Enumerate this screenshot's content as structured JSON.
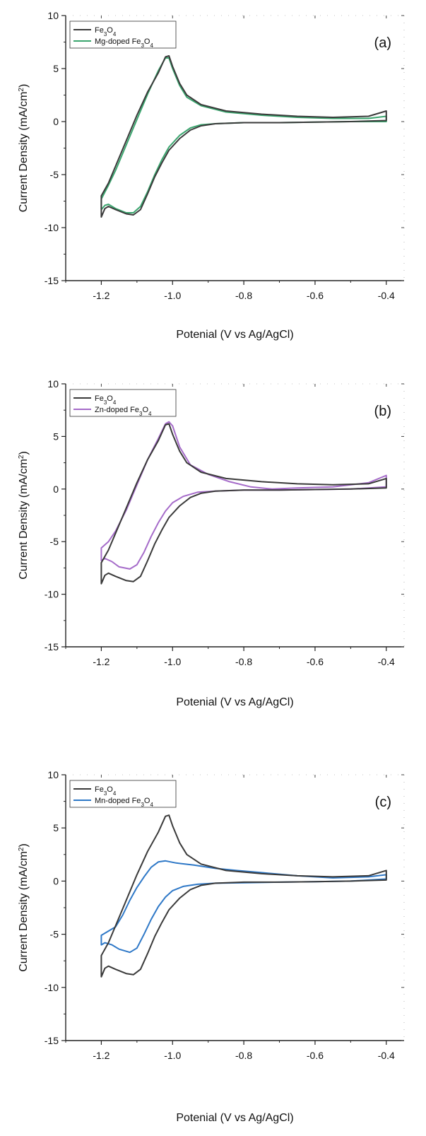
{
  "chart_data": [
    {
      "type": "line",
      "panel_label": "(a)",
      "xlabel": "Potenial (V vs Ag/AgCl)",
      "ylabel": "Current Density (mA/cm²)",
      "xlim": [
        -1.3,
        -0.35
      ],
      "ylim": [
        -15,
        10
      ],
      "xticks": [
        "-1.2",
        "-1.0",
        "-0.8",
        "-0.6",
        "-0.4"
      ],
      "yticks": [
        "10",
        "5",
        "0",
        "-5",
        "-10",
        "-15"
      ],
      "legend_position": "top-left",
      "series": [
        {
          "name": "Fe3O4",
          "color": "#3a3a3a",
          "points": [
            [
              -1.2,
              -9.0
            ],
            [
              -1.19,
              -8.2
            ],
            [
              -1.18,
              -8.0
            ],
            [
              -1.16,
              -8.3
            ],
            [
              -1.13,
              -8.7
            ],
            [
              -1.11,
              -8.8
            ],
            [
              -1.09,
              -8.3
            ],
            [
              -1.07,
              -6.8
            ],
            [
              -1.05,
              -5.2
            ],
            [
              -1.03,
              -3.9
            ],
            [
              -1.01,
              -2.7
            ],
            [
              -0.98,
              -1.6
            ],
            [
              -0.95,
              -0.8
            ],
            [
              -0.92,
              -0.4
            ],
            [
              -0.88,
              -0.2
            ],
            [
              -0.8,
              -0.1
            ],
            [
              -0.7,
              -0.1
            ],
            [
              -0.6,
              -0.05
            ],
            [
              -0.5,
              0.0
            ],
            [
              -0.4,
              0.1
            ],
            [
              -0.4,
              1.0
            ],
            [
              -0.45,
              0.5
            ],
            [
              -0.55,
              0.4
            ],
            [
              -0.65,
              0.5
            ],
            [
              -0.75,
              0.7
            ],
            [
              -0.85,
              1.0
            ],
            [
              -0.92,
              1.6
            ],
            [
              -0.96,
              2.5
            ],
            [
              -0.98,
              3.6
            ],
            [
              -1.0,
              5.2
            ],
            [
              -1.01,
              6.2
            ],
            [
              -1.02,
              6.1
            ],
            [
              -1.04,
              4.6
            ],
            [
              -1.07,
              2.8
            ],
            [
              -1.1,
              0.6
            ],
            [
              -1.13,
              -1.8
            ],
            [
              -1.16,
              -4.2
            ],
            [
              -1.18,
              -5.8
            ],
            [
              -1.2,
              -7.0
            ]
          ]
        },
        {
          "name": "Mg-doped Fe3O4",
          "color": "#3aa56e",
          "points": [
            [
              -1.2,
              -8.3
            ],
            [
              -1.19,
              -7.9
            ],
            [
              -1.18,
              -7.8
            ],
            [
              -1.16,
              -8.2
            ],
            [
              -1.13,
              -8.6
            ],
            [
              -1.11,
              -8.6
            ],
            [
              -1.09,
              -8.0
            ],
            [
              -1.07,
              -6.6
            ],
            [
              -1.05,
              -5.0
            ],
            [
              -1.03,
              -3.6
            ],
            [
              -1.01,
              -2.4
            ],
            [
              -0.98,
              -1.3
            ],
            [
              -0.95,
              -0.6
            ],
            [
              -0.92,
              -0.3
            ],
            [
              -0.88,
              -0.2
            ],
            [
              -0.8,
              -0.1
            ],
            [
              -0.7,
              -0.1
            ],
            [
              -0.6,
              -0.05
            ],
            [
              -0.5,
              0.0
            ],
            [
              -0.4,
              0.0
            ],
            [
              -0.4,
              0.5
            ],
            [
              -0.45,
              0.3
            ],
            [
              -0.55,
              0.3
            ],
            [
              -0.65,
              0.4
            ],
            [
              -0.75,
              0.6
            ],
            [
              -0.85,
              0.9
            ],
            [
              -0.92,
              1.5
            ],
            [
              -0.96,
              2.3
            ],
            [
              -0.98,
              3.4
            ],
            [
              -1.0,
              5.0
            ],
            [
              -1.01,
              6.0
            ],
            [
              -1.02,
              6.0
            ],
            [
              -1.04,
              4.8
            ],
            [
              -1.07,
              2.6
            ],
            [
              -1.1,
              0.2
            ],
            [
              -1.13,
              -2.2
            ],
            [
              -1.16,
              -4.6
            ],
            [
              -1.18,
              -6.0
            ],
            [
              -1.2,
              -7.3
            ]
          ]
        }
      ]
    },
    {
      "type": "line",
      "panel_label": "(b)",
      "xlabel": "Potenial (V vs Ag/AgCl)",
      "ylabel": "Current Density (mA/cm²)",
      "xlim": [
        -1.3,
        -0.35
      ],
      "ylim": [
        -15,
        10
      ],
      "xticks": [
        "-1.2",
        "-1.0",
        "-0.8",
        "-0.6",
        "-0.4"
      ],
      "yticks": [
        "10",
        "5",
        "0",
        "-5",
        "-10",
        "-15"
      ],
      "legend_position": "top-left",
      "series": [
        {
          "name": "Fe3O4",
          "color": "#3a3a3a",
          "points": [
            [
              -1.2,
              -9.0
            ],
            [
              -1.19,
              -8.2
            ],
            [
              -1.18,
              -8.0
            ],
            [
              -1.16,
              -8.3
            ],
            [
              -1.13,
              -8.7
            ],
            [
              -1.11,
              -8.8
            ],
            [
              -1.09,
              -8.3
            ],
            [
              -1.07,
              -6.8
            ],
            [
              -1.05,
              -5.2
            ],
            [
              -1.03,
              -3.9
            ],
            [
              -1.01,
              -2.7
            ],
            [
              -0.98,
              -1.6
            ],
            [
              -0.95,
              -0.8
            ],
            [
              -0.92,
              -0.4
            ],
            [
              -0.88,
              -0.2
            ],
            [
              -0.8,
              -0.1
            ],
            [
              -0.7,
              -0.1
            ],
            [
              -0.6,
              -0.05
            ],
            [
              -0.5,
              0.0
            ],
            [
              -0.4,
              0.1
            ],
            [
              -0.4,
              1.0
            ],
            [
              -0.45,
              0.5
            ],
            [
              -0.55,
              0.4
            ],
            [
              -0.65,
              0.5
            ],
            [
              -0.75,
              0.7
            ],
            [
              -0.85,
              1.0
            ],
            [
              -0.92,
              1.6
            ],
            [
              -0.96,
              2.5
            ],
            [
              -0.98,
              3.6
            ],
            [
              -1.0,
              5.2
            ],
            [
              -1.01,
              6.2
            ],
            [
              -1.02,
              6.1
            ],
            [
              -1.04,
              4.6
            ],
            [
              -1.07,
              2.8
            ],
            [
              -1.1,
              0.6
            ],
            [
              -1.13,
              -1.8
            ],
            [
              -1.16,
              -4.2
            ],
            [
              -1.18,
              -5.8
            ],
            [
              -1.2,
              -7.0
            ]
          ]
        },
        {
          "name": "Zn-doped Fe3O4",
          "color": "#a56bc9",
          "points": [
            [
              -1.2,
              -6.8
            ],
            [
              -1.19,
              -6.6
            ],
            [
              -1.17,
              -6.9
            ],
            [
              -1.15,
              -7.4
            ],
            [
              -1.12,
              -7.6
            ],
            [
              -1.1,
              -7.2
            ],
            [
              -1.08,
              -6.0
            ],
            [
              -1.06,
              -4.5
            ],
            [
              -1.04,
              -3.2
            ],
            [
              -1.02,
              -2.1
            ],
            [
              -1.0,
              -1.3
            ],
            [
              -0.97,
              -0.7
            ],
            [
              -0.93,
              -0.3
            ],
            [
              -0.88,
              -0.2
            ],
            [
              -0.8,
              -0.1
            ],
            [
              -0.7,
              -0.1
            ],
            [
              -0.6,
              -0.05
            ],
            [
              -0.5,
              0.0
            ],
            [
              -0.4,
              0.2
            ],
            [
              -0.4,
              1.3
            ],
            [
              -0.45,
              0.6
            ],
            [
              -0.55,
              0.2
            ],
            [
              -0.65,
              0.1
            ],
            [
              -0.72,
              0.0
            ],
            [
              -0.78,
              0.2
            ],
            [
              -0.84,
              0.7
            ],
            [
              -0.9,
              1.4
            ],
            [
              -0.95,
              2.3
            ],
            [
              -0.98,
              4.0
            ],
            [
              -1.0,
              6.0
            ],
            [
              -1.01,
              6.4
            ],
            [
              -1.02,
              6.2
            ],
            [
              -1.04,
              4.8
            ],
            [
              -1.07,
              2.8
            ],
            [
              -1.1,
              0.4
            ],
            [
              -1.13,
              -2.0
            ],
            [
              -1.16,
              -4.0
            ],
            [
              -1.18,
              -5.0
            ],
            [
              -1.2,
              -5.6
            ]
          ]
        }
      ]
    },
    {
      "type": "line",
      "panel_label": "(c)",
      "xlabel": "Potenial (V vs Ag/AgCl)",
      "ylabel": "Current Density (mA/cm²)",
      "xlim": [
        -1.3,
        -0.35
      ],
      "ylim": [
        -15,
        10
      ],
      "xticks": [
        "-1.2",
        "-1.0",
        "-0.8",
        "-0.6",
        "-0.4"
      ],
      "yticks": [
        "10",
        "5",
        "0",
        "-5",
        "-10",
        "-15"
      ],
      "legend_position": "top-left",
      "series": [
        {
          "name": "Fe3O4",
          "color": "#3a3a3a",
          "points": [
            [
              -1.2,
              -9.0
            ],
            [
              -1.19,
              -8.2
            ],
            [
              -1.18,
              -8.0
            ],
            [
              -1.16,
              -8.3
            ],
            [
              -1.13,
              -8.7
            ],
            [
              -1.11,
              -8.8
            ],
            [
              -1.09,
              -8.3
            ],
            [
              -1.07,
              -6.8
            ],
            [
              -1.05,
              -5.2
            ],
            [
              -1.03,
              -3.9
            ],
            [
              -1.01,
              -2.7
            ],
            [
              -0.98,
              -1.6
            ],
            [
              -0.95,
              -0.8
            ],
            [
              -0.92,
              -0.4
            ],
            [
              -0.88,
              -0.2
            ],
            [
              -0.8,
              -0.1
            ],
            [
              -0.7,
              -0.1
            ],
            [
              -0.6,
              -0.05
            ],
            [
              -0.5,
              0.0
            ],
            [
              -0.4,
              0.1
            ],
            [
              -0.4,
              1.0
            ],
            [
              -0.45,
              0.5
            ],
            [
              -0.55,
              0.4
            ],
            [
              -0.65,
              0.5
            ],
            [
              -0.75,
              0.7
            ],
            [
              -0.85,
              1.0
            ],
            [
              -0.92,
              1.6
            ],
            [
              -0.96,
              2.5
            ],
            [
              -0.98,
              3.6
            ],
            [
              -1.0,
              5.2
            ],
            [
              -1.01,
              6.2
            ],
            [
              -1.02,
              6.1
            ],
            [
              -1.04,
              4.6
            ],
            [
              -1.07,
              2.8
            ],
            [
              -1.1,
              0.6
            ],
            [
              -1.13,
              -1.8
            ],
            [
              -1.16,
              -4.2
            ],
            [
              -1.18,
              -5.8
            ],
            [
              -1.2,
              -7.0
            ]
          ]
        },
        {
          "name": "Mn-doped Fe3O4",
          "color": "#2e78c7",
          "points": [
            [
              -1.2,
              -6.0
            ],
            [
              -1.19,
              -5.8
            ],
            [
              -1.17,
              -6.0
            ],
            [
              -1.15,
              -6.4
            ],
            [
              -1.12,
              -6.7
            ],
            [
              -1.1,
              -6.3
            ],
            [
              -1.08,
              -5.0
            ],
            [
              -1.06,
              -3.6
            ],
            [
              -1.04,
              -2.4
            ],
            [
              -1.02,
              -1.5
            ],
            [
              -1.0,
              -0.9
            ],
            [
              -0.97,
              -0.5
            ],
            [
              -0.93,
              -0.3
            ],
            [
              -0.88,
              -0.2
            ],
            [
              -0.8,
              -0.15
            ],
            [
              -0.7,
              -0.1
            ],
            [
              -0.6,
              -0.05
            ],
            [
              -0.5,
              0.0
            ],
            [
              -0.4,
              0.2
            ],
            [
              -0.4,
              0.6
            ],
            [
              -0.45,
              0.4
            ],
            [
              -0.55,
              0.3
            ],
            [
              -0.65,
              0.5
            ],
            [
              -0.75,
              0.8
            ],
            [
              -0.82,
              1.0
            ],
            [
              -0.88,
              1.2
            ],
            [
              -0.94,
              1.5
            ],
            [
              -0.99,
              1.7
            ],
            [
              -1.02,
              1.9
            ],
            [
              -1.04,
              1.8
            ],
            [
              -1.06,
              1.3
            ],
            [
              -1.08,
              0.4
            ],
            [
              -1.1,
              -0.6
            ],
            [
              -1.12,
              -1.8
            ],
            [
              -1.14,
              -3.2
            ],
            [
              -1.16,
              -4.3
            ],
            [
              -1.18,
              -4.7
            ],
            [
              -1.2,
              -5.1
            ]
          ]
        }
      ]
    }
  ]
}
